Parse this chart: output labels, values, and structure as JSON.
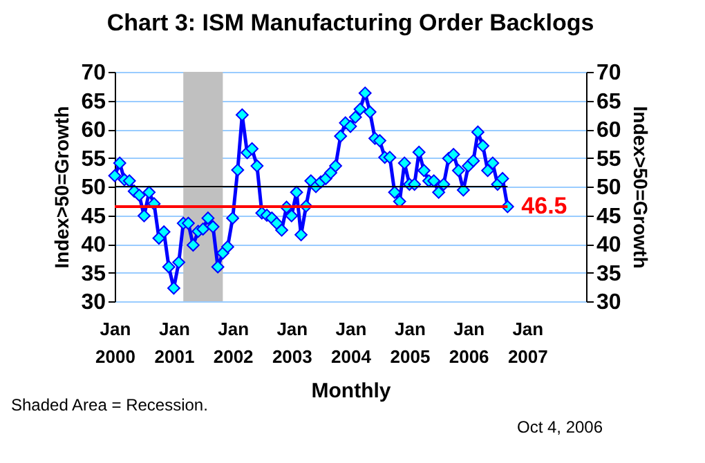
{
  "chart_data": {
    "type": "line",
    "title": "Chart 3: ISM Manufacturing Order Backlogs",
    "xlabel": "Monthly",
    "ylabel": "Index>50=Growth",
    "y2label": "Index>50=Growth",
    "x": [
      "2000-01",
      "2000-02",
      "2000-03",
      "2000-04",
      "2000-05",
      "2000-06",
      "2000-07",
      "2000-08",
      "2000-09",
      "2000-10",
      "2000-11",
      "2000-12",
      "2001-01",
      "2001-02",
      "2001-03",
      "2001-04",
      "2001-05",
      "2001-06",
      "2001-07",
      "2001-08",
      "2001-09",
      "2001-10",
      "2001-11",
      "2001-12",
      "2002-01",
      "2002-02",
      "2002-03",
      "2002-04",
      "2002-05",
      "2002-06",
      "2002-07",
      "2002-08",
      "2002-09",
      "2002-10",
      "2002-11",
      "2002-12",
      "2003-01",
      "2003-02",
      "2003-03",
      "2003-04",
      "2003-05",
      "2003-06",
      "2003-07",
      "2003-08",
      "2003-09",
      "2003-10",
      "2003-11",
      "2003-12",
      "2004-01",
      "2004-02",
      "2004-03",
      "2004-04",
      "2004-05",
      "2004-06",
      "2004-07",
      "2004-08",
      "2004-09",
      "2004-10",
      "2004-11",
      "2004-12",
      "2005-01",
      "2005-02",
      "2005-03",
      "2005-04",
      "2005-05",
      "2005-06",
      "2005-07",
      "2005-08",
      "2005-09",
      "2005-10",
      "2005-11",
      "2005-12",
      "2006-01",
      "2006-02",
      "2006-03",
      "2006-04",
      "2006-05",
      "2006-06",
      "2006-07",
      "2006-08",
      "2006-09"
    ],
    "series": [
      {
        "color": "#0000ff",
        "values": [
          51.9,
          54.1,
          51.2,
          51.0,
          49.2,
          48.5,
          44.9,
          49.0,
          47.0,
          41.0,
          42.1,
          36.0,
          32.3,
          36.8,
          43.6,
          43.6,
          39.8,
          42.2,
          42.6,
          44.5,
          43.0,
          36.0,
          38.4,
          39.5,
          44.5,
          52.9,
          62.5,
          55.9,
          56.6,
          53.6,
          45.4,
          45.0,
          44.5,
          43.6,
          42.4,
          46.4,
          44.9,
          49.0,
          41.6,
          46.6,
          51.0,
          50.0,
          50.8,
          51.4,
          52.4,
          53.6,
          58.8,
          61.1,
          60.5,
          62.1,
          63.5,
          66.3,
          63.0,
          58.4,
          58.0,
          55.1,
          55.1,
          49.0,
          47.4,
          54.1,
          50.4,
          50.4,
          56.0,
          52.8,
          51.0,
          51.0,
          49.0,
          50.4,
          54.9,
          55.6,
          52.8,
          49.4,
          53.6,
          54.5,
          59.5,
          57.1,
          52.8,
          54.1,
          50.4,
          51.4,
          46.5
        ]
      }
    ],
    "xlim": [
      "2000-01",
      "2008-01"
    ],
    "xticks": [
      {
        "value": "2000-01",
        "label": "Jan 2000"
      },
      {
        "value": "2001-01",
        "label": "Jan 2001"
      },
      {
        "value": "2002-01",
        "label": "Jan 2002"
      },
      {
        "value": "2003-01",
        "label": "Jan 2003"
      },
      {
        "value": "2004-01",
        "label": "Jan 2004"
      },
      {
        "value": "2005-01",
        "label": "Jan 2005"
      },
      {
        "value": "2006-01",
        "label": "Jan 2006"
      },
      {
        "value": "2007-01",
        "label": "Jan 2007"
      }
    ],
    "ylim": [
      30,
      70
    ],
    "yticks": [
      30,
      35,
      40,
      45,
      50,
      55,
      60,
      65,
      70
    ],
    "y2lim": [
      30,
      70
    ],
    "y2ticks": [
      30,
      35,
      40,
      45,
      50,
      55,
      60,
      65,
      70
    ],
    "bands": [
      {
        "axis": "x",
        "from": "2001-03",
        "to": "2001-11",
        "color": "#c0c0c0"
      }
    ],
    "ref_lines": [
      {
        "axis": "y",
        "value": 46.5,
        "label": "46.5",
        "color": "#ff0000"
      },
      {
        "axis": "y2",
        "value": 50,
        "color": "#000000"
      }
    ],
    "annotations": [
      "Shaded Area  = Recession.",
      "Oct 4, 2006"
    ],
    "grid": "y",
    "marker": "diamond",
    "line_style": "solid",
    "legend": false
  }
}
